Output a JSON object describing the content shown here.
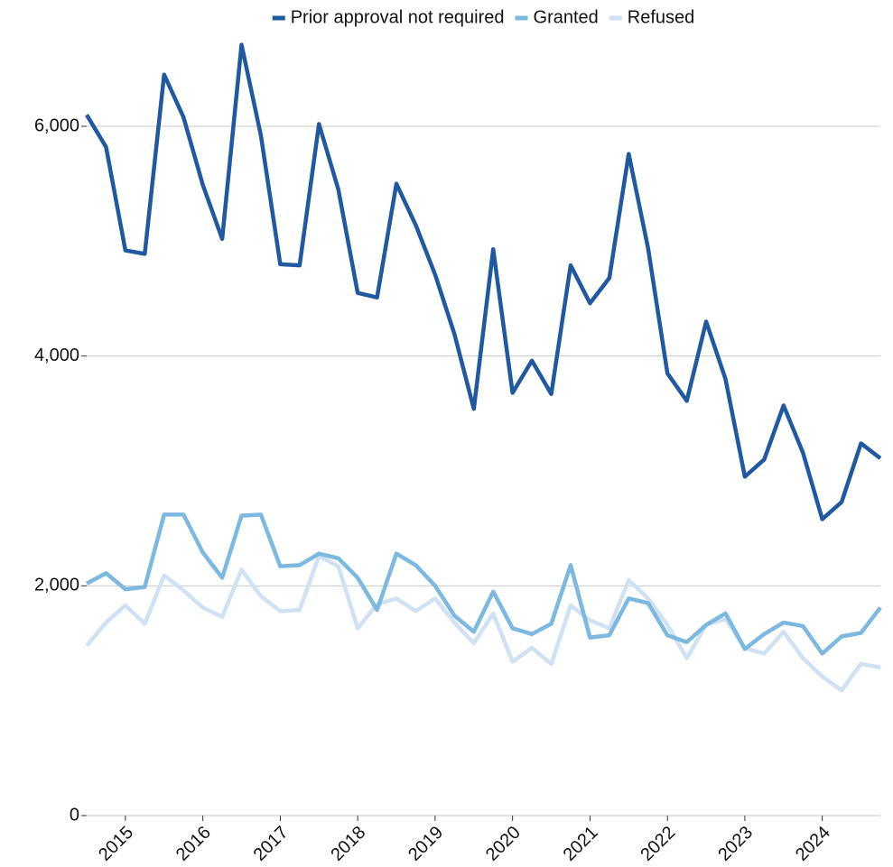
{
  "chart_data": {
    "type": "line",
    "x": [
      2014.5,
      2014.75,
      2015,
      2015.25,
      2015.5,
      2015.75,
      2016,
      2016.25,
      2016.5,
      2016.75,
      2017,
      2017.25,
      2017.5,
      2017.75,
      2018,
      2018.25,
      2018.5,
      2018.75,
      2019,
      2019.25,
      2019.5,
      2019.75,
      2020,
      2020.25,
      2020.5,
      2020.75,
      2021,
      2021.25,
      2021.5,
      2021.75,
      2022,
      2022.25,
      2022.5,
      2022.75,
      2023,
      2023.25,
      2023.5,
      2023.75,
      2024,
      2024.25,
      2024.5,
      2024.75
    ],
    "series": [
      {
        "name": "Prior approval not required",
        "color": "#2159a0",
        "values": [
          6100,
          5820,
          4920,
          4890,
          6450,
          6080,
          5490,
          5020,
          6710,
          5920,
          4800,
          4790,
          6020,
          5450,
          4550,
          4510,
          5500,
          5140,
          4710,
          4190,
          3540,
          4930,
          3680,
          3960,
          3670,
          4790,
          4460,
          4680,
          5760,
          4940,
          3850,
          3610,
          4300,
          3800,
          2950,
          3100,
          3570,
          3160,
          2580,
          2730,
          3240,
          3110
        ]
      },
      {
        "name": "Granted",
        "color": "#7db8e0",
        "values": [
          2020,
          2110,
          1970,
          1990,
          2620,
          2620,
          2290,
          2070,
          2610,
          2620,
          2170,
          2180,
          2280,
          2240,
          2070,
          1790,
          2280,
          2180,
          2000,
          1740,
          1600,
          1950,
          1630,
          1580,
          1670,
          2180,
          1550,
          1570,
          1890,
          1850,
          1570,
          1510,
          1660,
          1760,
          1450,
          1580,
          1680,
          1650,
          1410,
          1560,
          1590,
          1810
        ]
      },
      {
        "name": "Refused",
        "color": "#cfe1f2",
        "values": [
          1480,
          1680,
          1830,
          1670,
          2090,
          1960,
          1810,
          1730,
          2140,
          1910,
          1780,
          1790,
          2260,
          2170,
          1630,
          1840,
          1890,
          1780,
          1890,
          1680,
          1500,
          1760,
          1340,
          1460,
          1320,
          1830,
          1700,
          1630,
          2050,
          1890,
          1660,
          1370,
          1660,
          1710,
          1460,
          1410,
          1600,
          1370,
          1210,
          1090,
          1320,
          1290
        ]
      }
    ],
    "xlim": [
      2014.5,
      2024.75
    ],
    "xticks": [
      2015,
      2016,
      2017,
      2018,
      2019,
      2020,
      2021,
      2022,
      2023,
      2024
    ],
    "ylim": [
      0,
      7000
    ],
    "yticks": [
      0,
      {
        "value": 2000,
        "label": "2,000"
      },
      {
        "value": 4000,
        "label": "4,000"
      },
      {
        "value": 6000,
        "label": "6,000"
      }
    ],
    "grid": true,
    "legend": "top"
  }
}
